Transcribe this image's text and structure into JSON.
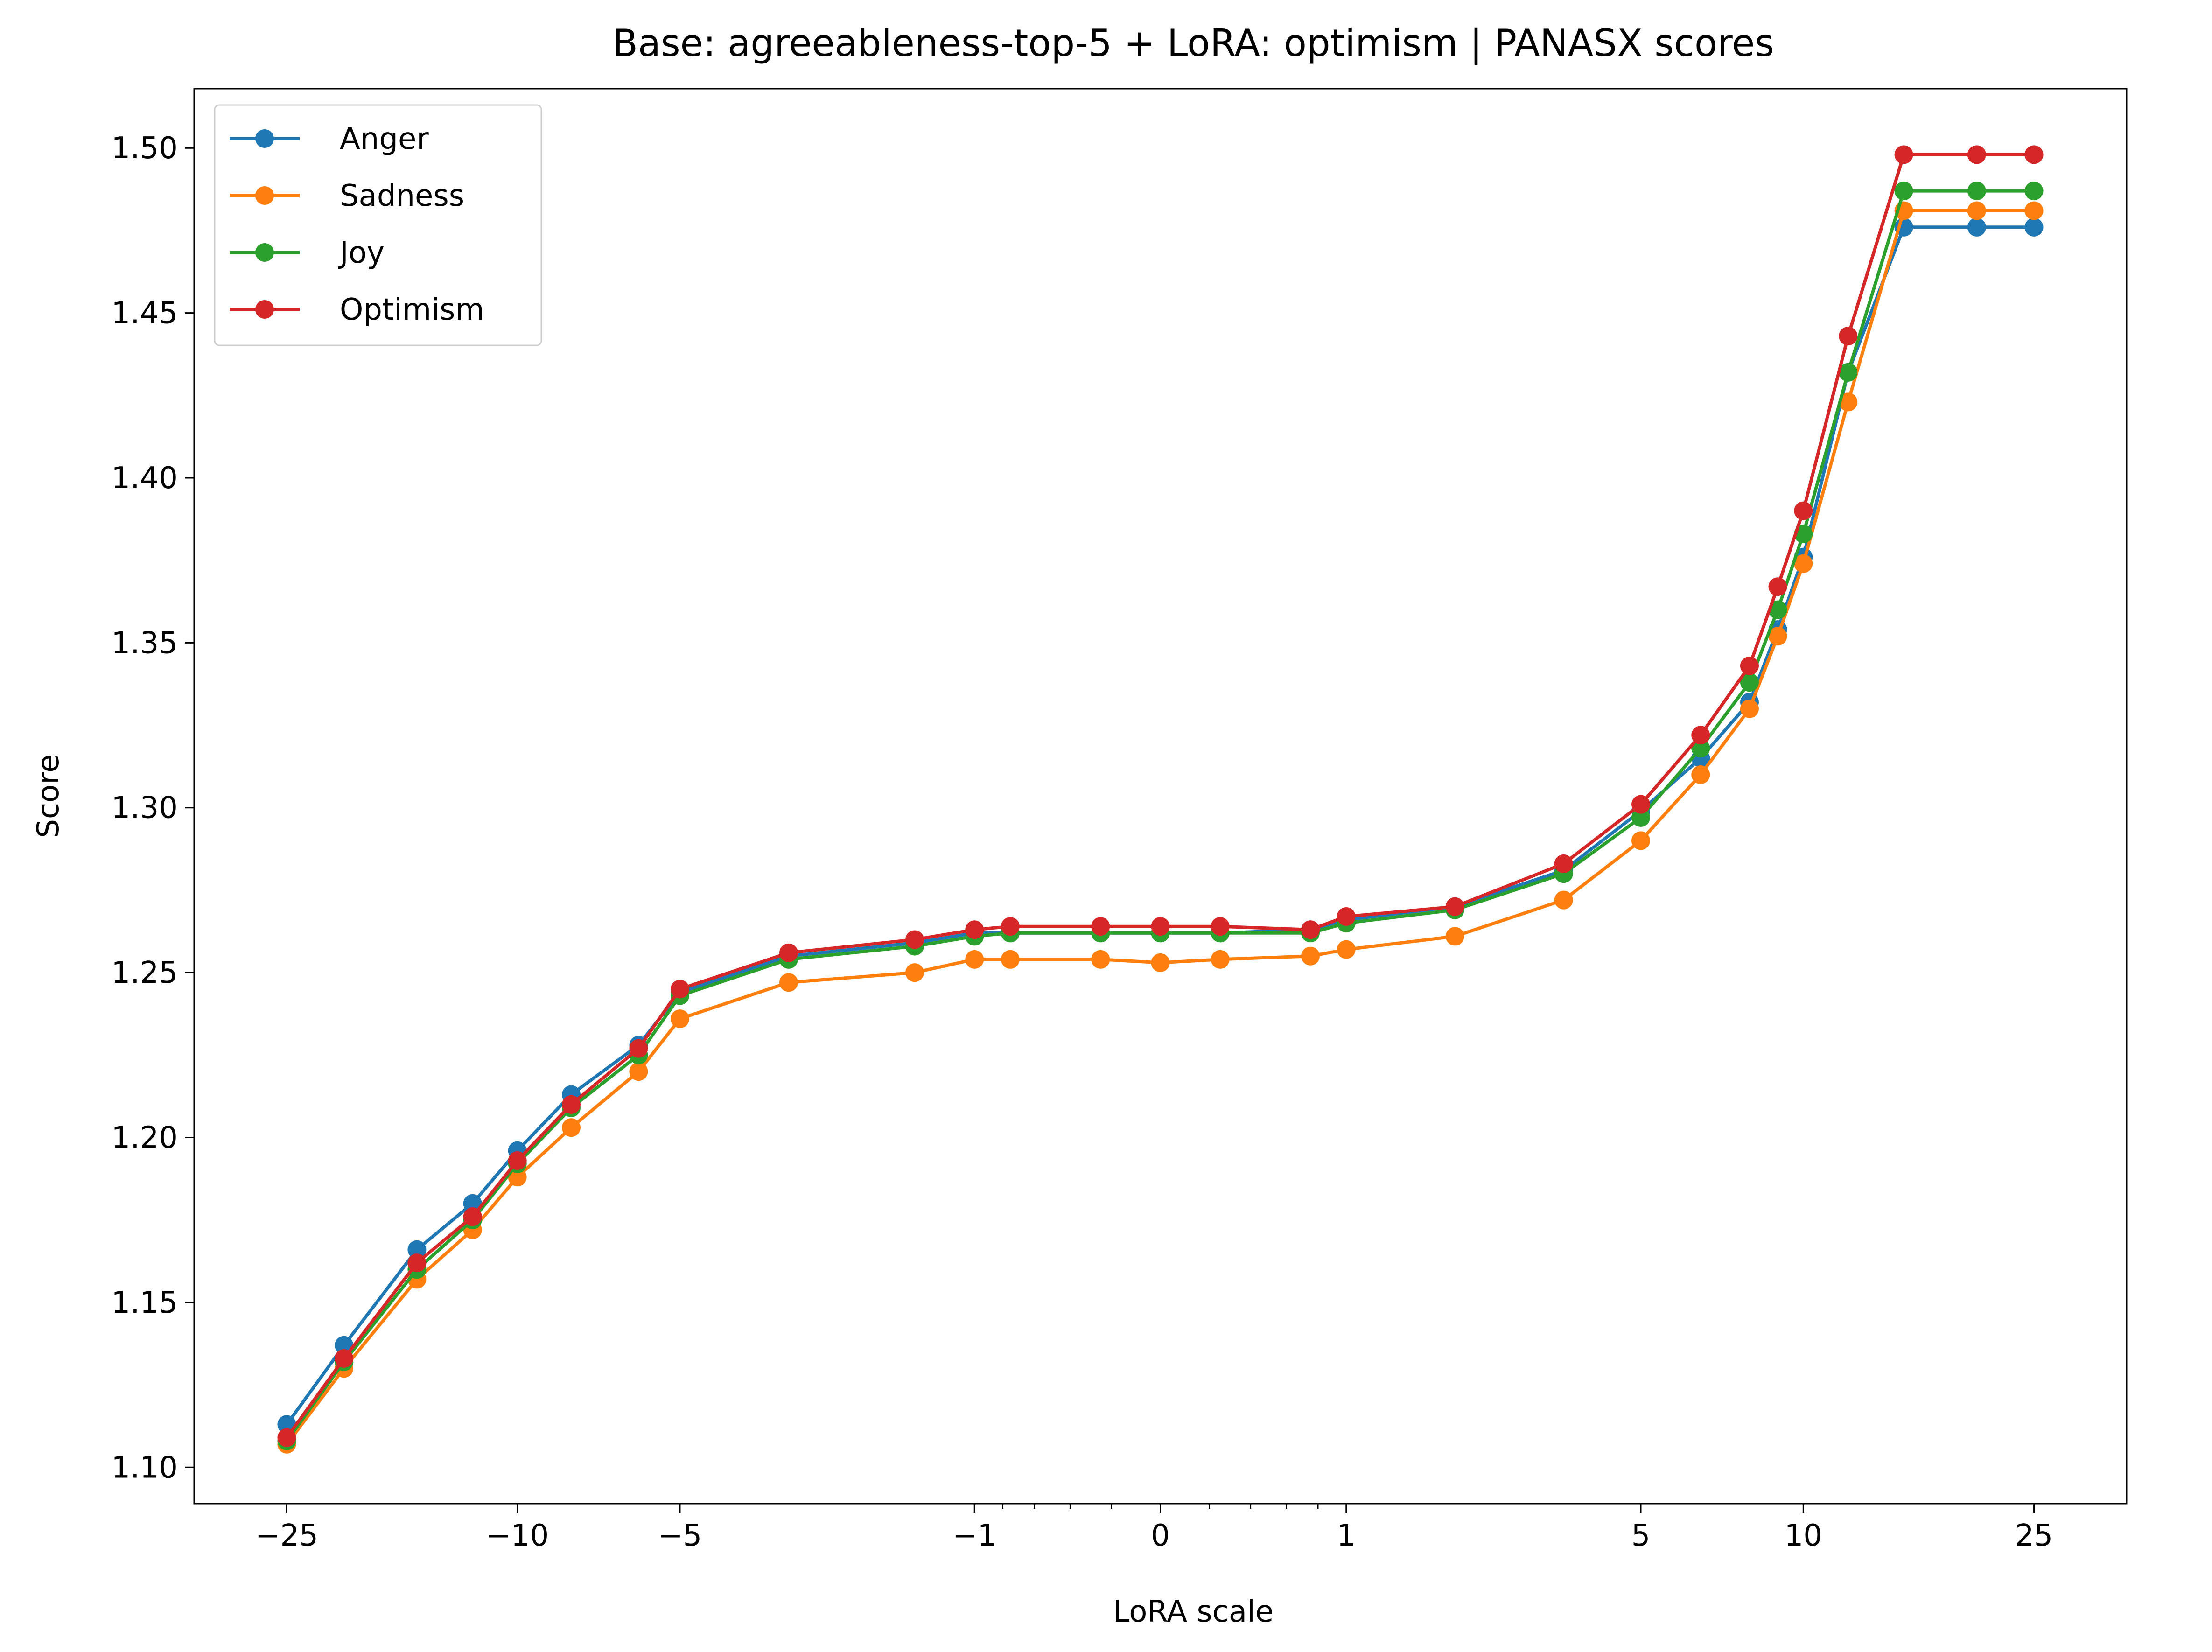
{
  "chart_data": {
    "type": "line",
    "title": "Base: agreeableness-top-5 + LoRA: optimism | PANASX scores",
    "xlabel": "LoRA scale",
    "ylabel": "Score",
    "xscale": "symlog",
    "ylim": [
      1.089,
      1.518
    ],
    "yticks": [
      1.1,
      1.15,
      1.2,
      1.25,
      1.3,
      1.35,
      1.4,
      1.45,
      1.5
    ],
    "ytick_labels": [
      "1.10",
      "1.15",
      "1.20",
      "1.25",
      "1.30",
      "1.35",
      "1.40",
      "1.45",
      "1.50"
    ],
    "xticks": [
      -25,
      -10,
      -5,
      -1,
      0,
      1,
      5,
      10,
      25
    ],
    "xtick_labels": [
      "−25",
      "−10",
      "−5",
      "−1",
      "0",
      "1",
      "5",
      "10",
      "25"
    ],
    "legend_position": "top-left",
    "grid": false,
    "x": [
      -25,
      -20,
      -15,
      -12,
      -10,
      -8,
      -6,
      -5,
      -3,
      -1.5,
      -1,
      -0.75,
      -0.25,
      0,
      0.25,
      0.75,
      1,
      2,
      3.5,
      5,
      6.5,
      8,
      9,
      10,
      12,
      15,
      20,
      25
    ],
    "series": [
      {
        "name": "Anger",
        "color": "#1f77b4",
        "values": [
          1.113,
          1.137,
          1.166,
          1.18,
          1.196,
          1.213,
          1.228,
          1.244,
          1.255,
          1.259,
          1.262,
          1.262,
          1.262,
          1.262,
          1.262,
          1.263,
          1.266,
          1.27,
          1.281,
          1.299,
          1.315,
          1.332,
          1.354,
          1.376,
          1.432,
          1.476,
          1.476,
          1.476
        ]
      },
      {
        "name": "Sadness",
        "color": "#ff7f0e",
        "values": [
          1.107,
          1.13,
          1.157,
          1.172,
          1.188,
          1.203,
          1.22,
          1.236,
          1.247,
          1.25,
          1.254,
          1.254,
          1.254,
          1.253,
          1.254,
          1.255,
          1.257,
          1.261,
          1.272,
          1.29,
          1.31,
          1.33,
          1.352,
          1.374,
          1.423,
          1.481,
          1.481,
          1.481
        ]
      },
      {
        "name": "Joy",
        "color": "#2ca02c",
        "values": [
          1.108,
          1.132,
          1.16,
          1.175,
          1.192,
          1.209,
          1.225,
          1.243,
          1.254,
          1.258,
          1.261,
          1.262,
          1.262,
          1.262,
          1.262,
          1.262,
          1.265,
          1.269,
          1.28,
          1.297,
          1.318,
          1.338,
          1.36,
          1.383,
          1.432,
          1.487,
          1.487,
          1.487
        ]
      },
      {
        "name": "Optimism",
        "color": "#d62728",
        "values": [
          1.109,
          1.133,
          1.162,
          1.176,
          1.193,
          1.21,
          1.227,
          1.245,
          1.256,
          1.26,
          1.263,
          1.264,
          1.264,
          1.264,
          1.264,
          1.263,
          1.267,
          1.27,
          1.283,
          1.301,
          1.322,
          1.343,
          1.367,
          1.39,
          1.443,
          1.498,
          1.498,
          1.498
        ]
      }
    ]
  }
}
